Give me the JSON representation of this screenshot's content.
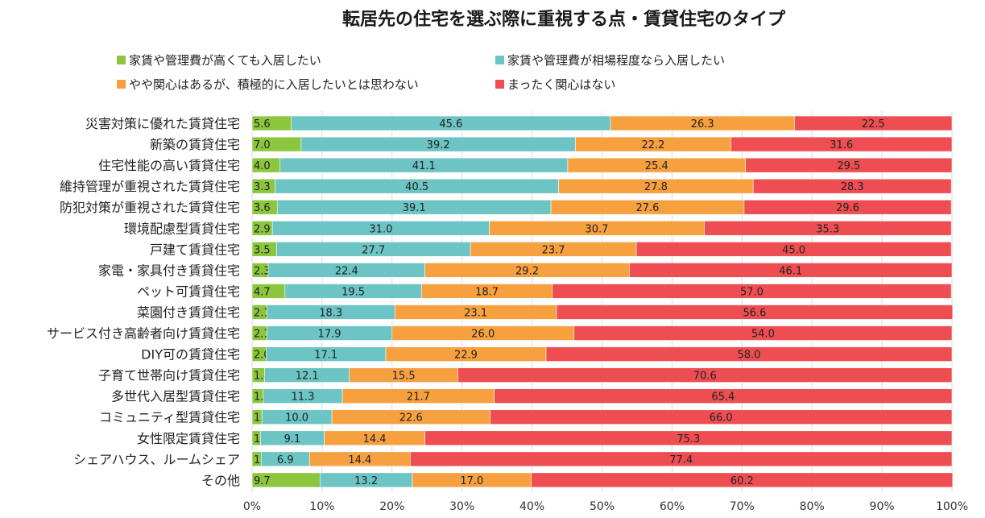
{
  "chart_data": {
    "type": "bar",
    "orientation": "horizontal",
    "stacked": true,
    "title": "転居先の住宅を選ぶ際に重視する点・賃貸住宅のタイプ",
    "categories": [
      "災害対策に優れた賃貸住宅",
      "新築の賃貸住宅",
      "住宅性能の高い賃貸住宅",
      "維持管理が重視された賃貸住宅",
      "防犯対策が重視された賃貸住宅",
      "環境配慮型賃貸住宅",
      "戸建て賃貸住宅",
      "家電・家具付き賃貸住宅",
      "ペット可賃貸住宅",
      "菜園付き賃貸住宅",
      "サービス付き高齢者向け賃貸住宅",
      "DIY可の賃貸住宅",
      "子育て世帯向け賃貸住宅",
      "多世代入居型賃貸住宅",
      "コミュニティ型賃貸住宅",
      "女性限定賃貸住宅",
      "シェアハウス、ルームシェア",
      "その他"
    ],
    "series": [
      {
        "name": "家賃や管理費が高くても入居したい",
        "color": "#8cc63f",
        "values": [
          "5.6",
          "7.0",
          "4.0",
          "3.3",
          "3.6",
          "2.9",
          "3.5",
          "2.3",
          "4.7",
          "2.1",
          "2.1",
          "2.0",
          "1.8",
          "1.6",
          "1.4",
          "1.2",
          "1.3",
          "9.7"
        ]
      },
      {
        "name": "家賃や管理費が相場程度なら入居したい",
        "color": "#6cc4c4",
        "values": [
          "45.6",
          "39.2",
          "41.1",
          "40.5",
          "39.1",
          "31.0",
          "27.7",
          "22.4",
          "19.5",
          "18.3",
          "17.9",
          "17.1",
          "12.1",
          "11.3",
          "10.0",
          "9.1",
          "6.9",
          "13.2"
        ]
      },
      {
        "name": "やや関心はあるが、積極的に入居したいとは思わない",
        "color": "#f7a040",
        "values": [
          "26.3",
          "22.2",
          "25.4",
          "27.8",
          "27.6",
          "30.7",
          "23.7",
          "29.2",
          "18.7",
          "23.1",
          "26.0",
          "22.9",
          "15.5",
          "21.7",
          "22.6",
          "14.4",
          "14.4",
          "17.0"
        ]
      },
      {
        "name": "まったく関心はない",
        "color": "#ee4e52",
        "values": [
          "22.5",
          "31.6",
          "29.5",
          "28.3",
          "29.6",
          "35.3",
          "45.0",
          "46.1",
          "57.0",
          "56.6",
          "54.0",
          "58.0",
          "70.6",
          "65.4",
          "66.0",
          "75.3",
          "77.4",
          "60.2"
        ]
      }
    ],
    "xlim": [
      0,
      100
    ],
    "xticks": [
      "0%",
      "10%",
      "20%",
      "30%",
      "40%",
      "50%",
      "60%",
      "70%",
      "80%",
      "90%",
      "100%"
    ],
    "grid": true,
    "legend_position": "top"
  }
}
